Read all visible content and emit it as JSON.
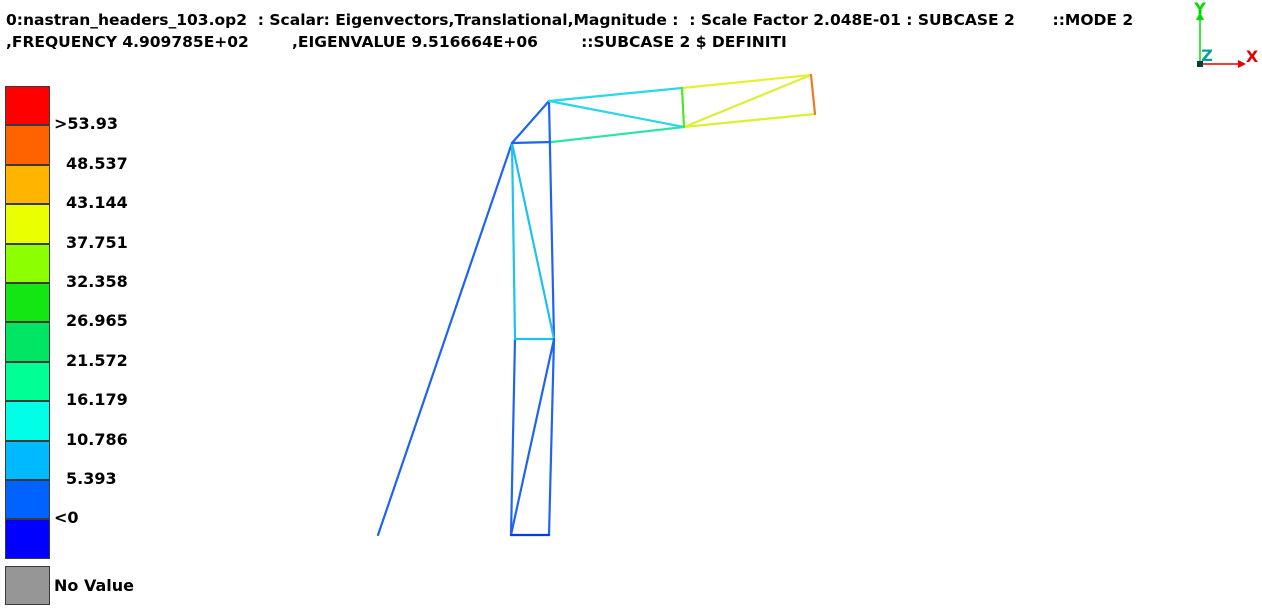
{
  "header": {
    "line1": "0:nastran_headers_103.op2  : Scalar: Eigenvectors,Translational,Magnitude :  : Scale Factor 2.048E-01 : SUBCASE 2       ::MODE 2",
    "line2": ",FREQUENCY 4.909785E+02        ,EIGENVALUE 9.516664E+06        ::SUBCASE 2 $ DEFINITI"
  },
  "legend": {
    "bands": [
      {
        "color": "#ff0000"
      },
      {
        "color": "#ff6300"
      },
      {
        "color": "#ffb400"
      },
      {
        "color": "#eaff00"
      },
      {
        "color": "#8cff00"
      },
      {
        "color": "#14e614"
      },
      {
        "color": "#00e664"
      },
      {
        "color": "#00ff94"
      },
      {
        "color": "#00ffe6"
      },
      {
        "color": "#00b9ff"
      },
      {
        "color": "#0063ff"
      },
      {
        "color": "#0000ff"
      }
    ],
    "labels": [
      ">53.93",
      "48.537",
      "43.144",
      "37.751",
      "32.358",
      "26.965",
      "21.572",
      "16.179",
      "10.786",
      "5.393",
      "<0"
    ],
    "no_value": {
      "label": "No Value",
      "color": "#969696"
    }
  },
  "triad": {
    "x_label": "X",
    "y_label": "Y",
    "z_label": "Z",
    "x_color": "#e60000",
    "y_color": "#00dc00",
    "z_color": "#00a0a0"
  }
}
